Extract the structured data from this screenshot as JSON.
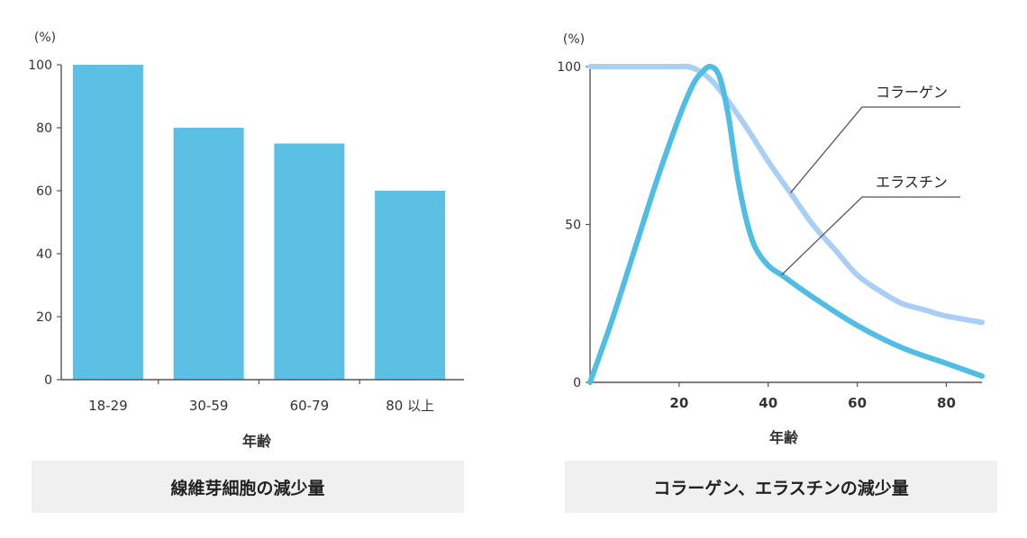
{
  "chart_data": [
    {
      "type": "bar",
      "unit_label": "(%)",
      "categories": [
        "18-29",
        "30-59",
        "60-79",
        "80 以上"
      ],
      "values": [
        100,
        80,
        75,
        60
      ],
      "yticks": [
        0,
        20,
        40,
        60,
        80,
        100
      ],
      "ylim": [
        0,
        100
      ],
      "xlabel": "年齢",
      "caption": "線維芽細胞の減少量",
      "color": "#5bc0e3"
    },
    {
      "type": "line",
      "unit_label": "(%)",
      "xlabel": "年齢",
      "xticks": [
        20,
        40,
        60,
        80
      ],
      "yticks": [
        0,
        50,
        100
      ],
      "xlim": [
        0,
        88
      ],
      "ylim": [
        0,
        100
      ],
      "caption": "コラーゲン、エラスチンの減少量",
      "series": [
        {
          "name": "コラーゲン",
          "color": "#a9cff7",
          "x": [
            0,
            10,
            20,
            22,
            24,
            27,
            30,
            35,
            40,
            45,
            50,
            55,
            60,
            65,
            70,
            75,
            80,
            88
          ],
          "y": [
            100,
            100,
            100,
            100,
            99,
            96,
            91,
            81,
            70,
            60,
            50,
            42,
            34,
            29,
            25,
            23,
            21,
            19
          ]
        },
        {
          "name": "エラスチン",
          "color": "#4fbde4",
          "x": [
            0,
            5,
            10,
            15,
            20,
            23,
            25,
            27,
            29,
            31,
            33,
            35,
            37,
            40,
            43,
            50,
            60,
            70,
            80,
            88
          ],
          "y": [
            0,
            20,
            42,
            64,
            84,
            94,
            98,
            100,
            97,
            85,
            66,
            52,
            43,
            37,
            34,
            27,
            18,
            11,
            6,
            2
          ]
        }
      ]
    }
  ]
}
